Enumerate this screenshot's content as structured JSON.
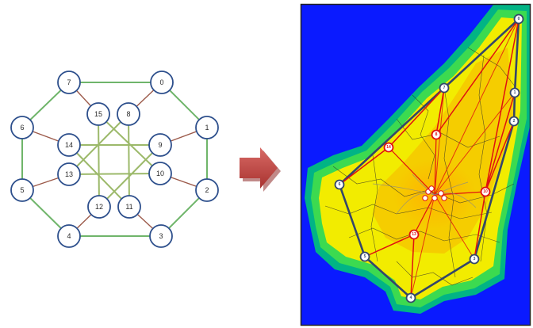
{
  "graph": {
    "nodes": [
      "0",
      "1",
      "2",
      "3",
      "4",
      "5",
      "6",
      "7",
      "8",
      "9",
      "10",
      "11",
      "12",
      "13",
      "14",
      "15"
    ],
    "ring_edges": [
      [
        "0",
        "1"
      ],
      [
        "1",
        "2"
      ],
      [
        "2",
        "3"
      ],
      [
        "3",
        "4"
      ],
      [
        "4",
        "5"
      ],
      [
        "5",
        "6"
      ],
      [
        "6",
        "7"
      ],
      [
        "7",
        "0"
      ]
    ],
    "spoke_edges": [
      [
        "0",
        "8"
      ],
      [
        "1",
        "9"
      ],
      [
        "2",
        "10"
      ],
      [
        "3",
        "11"
      ],
      [
        "4",
        "12"
      ],
      [
        "5",
        "13"
      ],
      [
        "6",
        "14"
      ],
      [
        "7",
        "15"
      ]
    ],
    "inner_edges": [
      [
        "8",
        "11"
      ],
      [
        "8",
        "13"
      ],
      [
        "9",
        "12"
      ],
      [
        "9",
        "14"
      ],
      [
        "10",
        "13"
      ],
      [
        "10",
        "15"
      ],
      [
        "11",
        "14"
      ],
      [
        "12",
        "15"
      ]
    ],
    "colors": {
      "ring": "#6fb56a",
      "spoke": "#9c5a4a",
      "inner": "#9cb96a",
      "node_stroke": "#2d4f8c",
      "node_fill": "#ffffff"
    }
  },
  "arrow": {
    "color": "#c0504d",
    "shadow": "#8e2a28"
  },
  "map": {
    "background": "#0a1aff",
    "heat_colors": [
      "#00e0a0",
      "#3fe05a",
      "#f2ee00",
      "#f9c400"
    ],
    "route_color": "#34466a",
    "link_color": "#e01010",
    "hub_labels": [
      "0",
      "1",
      "2",
      "3",
      "4",
      "5",
      "6",
      "7"
    ],
    "inner_labels": [
      "8",
      "10",
      "13",
      "14"
    ]
  }
}
